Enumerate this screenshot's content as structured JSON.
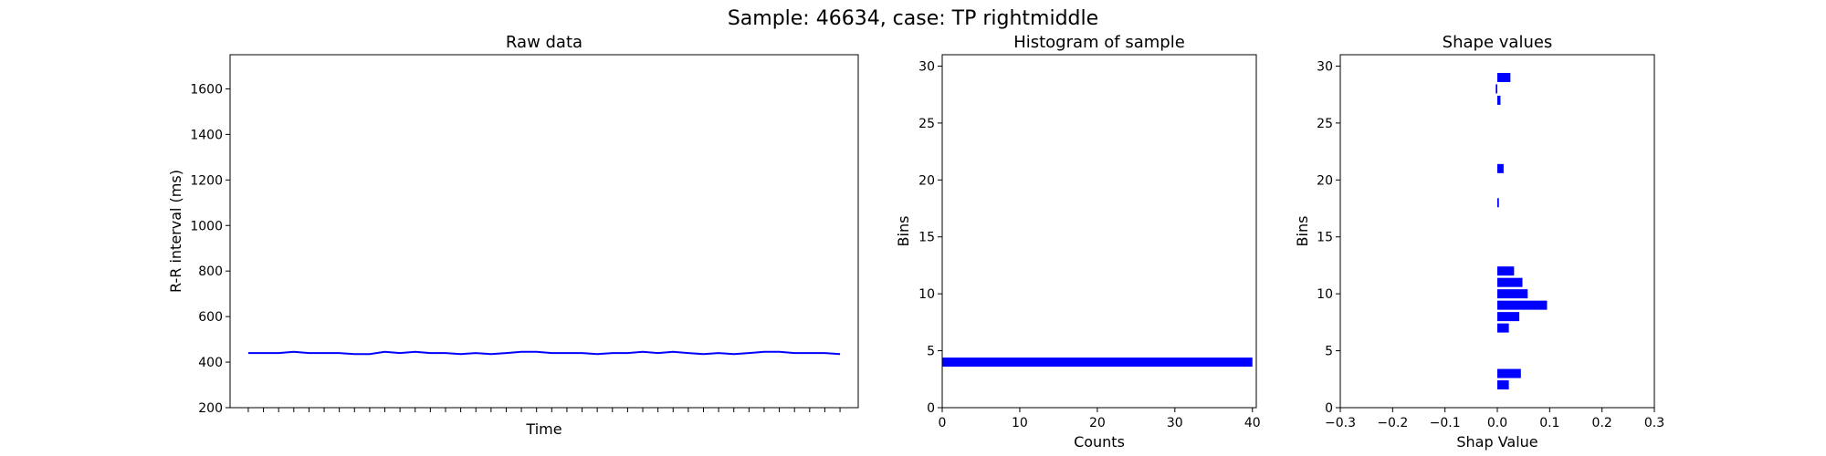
{
  "figure_title": "Sample: 46634, case: TP rightmiddle",
  "colors": {
    "series": "#0000ff",
    "axis": "#000000",
    "background": "#ffffff"
  },
  "chart_data": [
    {
      "type": "line",
      "title": "Raw data",
      "xlabel": "Time",
      "ylabel": "R-R interval (ms)",
      "ylim": [
        200,
        1750
      ],
      "yticks": [
        200,
        400,
        600,
        800,
        1000,
        1200,
        1400,
        1600
      ],
      "xlim": [
        -0.5,
        28.5
      ],
      "x_tick_labels_visible": false,
      "grid": false,
      "series": [
        {
          "values": [
            440,
            440,
            440,
            445,
            440,
            440,
            440,
            435,
            435,
            445,
            440,
            445,
            440,
            440,
            435,
            440,
            435,
            440,
            445,
            445,
            440,
            440,
            440,
            435,
            440,
            440,
            445,
            440,
            445,
            440,
            435,
            440,
            435,
            440,
            445,
            445,
            440,
            440,
            440,
            435
          ]
        }
      ]
    },
    {
      "type": "bar",
      "orientation": "horizontal",
      "title": "Histogram of sample",
      "xlabel": "Counts",
      "ylabel": "Bins",
      "xlim": [
        0,
        40.5
      ],
      "ylim": [
        0,
        31
      ],
      "xticks": [
        0,
        10,
        20,
        30,
        40
      ],
      "yticks": [
        0,
        5,
        10,
        15,
        20,
        25,
        30
      ],
      "grid": false,
      "bars": [
        {
          "bin": 4,
          "value": 40
        }
      ]
    },
    {
      "type": "bar",
      "orientation": "horizontal",
      "title": "Shape values",
      "xlabel": "Shap Value",
      "ylabel": "Bins",
      "xlim": [
        -0.3,
        0.3
      ],
      "ylim": [
        0,
        31
      ],
      "xticks": [
        -0.3,
        -0.2,
        -0.1,
        0.0,
        0.1,
        0.2,
        0.3
      ],
      "xtick_labels": [
        "−0.3",
        "−0.2",
        "−0.1",
        "0.0",
        "0.1",
        "0.2",
        "0.3"
      ],
      "yticks": [
        0,
        5,
        10,
        15,
        20,
        25,
        30
      ],
      "grid": false,
      "bars": [
        {
          "bin": 2,
          "value": 0.022
        },
        {
          "bin": 3,
          "value": 0.045
        },
        {
          "bin": 7,
          "value": 0.022
        },
        {
          "bin": 8,
          "value": 0.042
        },
        {
          "bin": 9,
          "value": 0.095
        },
        {
          "bin": 10,
          "value": 0.058
        },
        {
          "bin": 11,
          "value": 0.048
        },
        {
          "bin": 12,
          "value": 0.032
        },
        {
          "bin": 18,
          "value": 0.003
        },
        {
          "bin": 21,
          "value": 0.012
        },
        {
          "bin": 27,
          "value": 0.006
        },
        {
          "bin": 28,
          "value": -0.003
        },
        {
          "bin": 29,
          "value": 0.025
        }
      ]
    }
  ]
}
